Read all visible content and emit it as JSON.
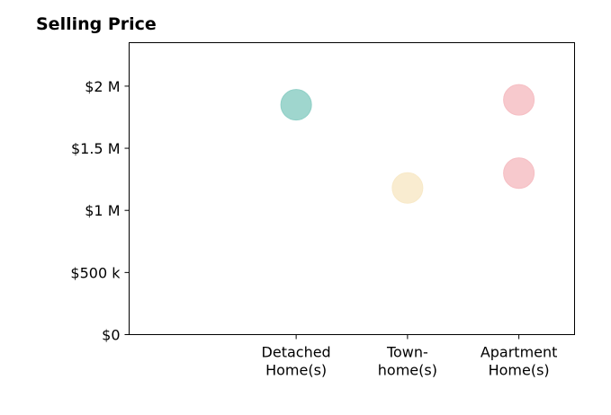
{
  "chart_data": {
    "type": "scatter",
    "title": "Selling Price",
    "categories": [
      "Detached\nHome(s)",
      "Town-\nhome(s)",
      "Apartment\nHome(s)"
    ],
    "yticks": [
      {
        "value": 0,
        "label": "$0"
      },
      {
        "value": 500000,
        "label": "$500 k"
      },
      {
        "value": 1000000,
        "label": "$1 M"
      },
      {
        "value": 1500000,
        "label": "$1.5 M"
      },
      {
        "value": 2000000,
        "label": "$2 M"
      }
    ],
    "ylim": [
      0,
      2350000
    ],
    "xlim": [
      -0.5,
      3.5
    ],
    "grid": false,
    "points": [
      {
        "category": "Detached\nHome(s)",
        "x": 1,
        "y": 1850000,
        "color": "#8ecfc6"
      },
      {
        "category": "Town-\nhome(s)",
        "x": 2,
        "y": 1180000,
        "color": "#f8e9c8"
      },
      {
        "category": "Apartment\nHome(s)",
        "x": 3,
        "y": 1890000,
        "color": "#f6bfc4"
      },
      {
        "category": "Apartment\nHome(s)",
        "x": 3,
        "y": 1300000,
        "color": "#f6bfc4"
      }
    ],
    "colors": {
      "detached": "#8ecfc6",
      "townhome": "#f8e9c8",
      "apartment": "#f6bfc4"
    }
  }
}
